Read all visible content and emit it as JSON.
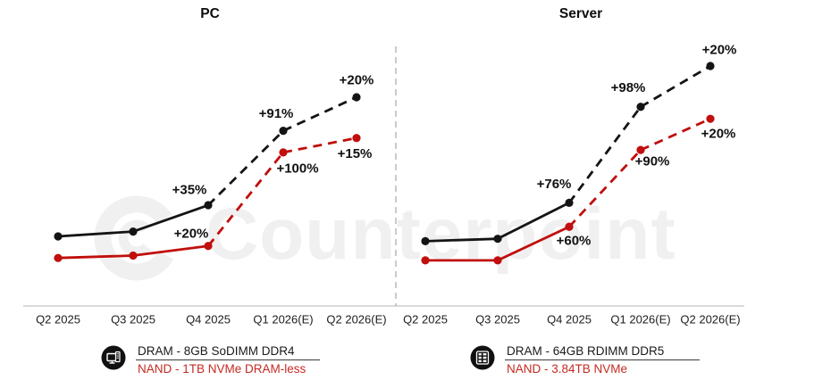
{
  "watermark": {
    "text": "Counterpoint",
    "tm": "™"
  },
  "colors": {
    "dram_line": "#141414",
    "nand_line": "#c00f0c",
    "annotation_text": "#111111",
    "axis_line": "#c4c4c4",
    "separator_line": "#a8a8a8",
    "tick_text": "#1c1c1c",
    "watermark": "#f0f0f0",
    "nand_text": "#c52a22",
    "legend_icon_bg": "#111111"
  },
  "chart_data": [
    {
      "type": "line",
      "title": "PC",
      "categories": [
        "Q2 2025",
        "Q3 2025",
        "Q4 2025",
        "Q1 2026(E)",
        "Q2 2026(E)"
      ],
      "xlabel": "",
      "ylabel": "",
      "axis_note": "no y-axis shown; levels are relative price-index heights (0-100) estimated from plot; solid = actuals through Q4 2025, dashed = estimates",
      "legend_position": "bottom",
      "grid": false,
      "series": [
        {
          "name": "DRAM",
          "legend_label": "DRAM - 8GB SoDIMM DDR4",
          "color_key": "dram_line",
          "levels": [
            29,
            31,
            42,
            73,
            87
          ],
          "qoq_labels": [
            "",
            "",
            "+35%",
            "+91%",
            "+20%"
          ],
          "solid_points": 3
        },
        {
          "name": "NAND",
          "legend_label": "NAND - 1TB NVMe DRAM-less",
          "color_key": "nand_line",
          "levels": [
            20,
            21,
            25,
            64,
            70
          ],
          "qoq_labels": [
            "",
            "",
            "+20%",
            "+100%",
            "+15%"
          ],
          "solid_points": 3
        }
      ]
    },
    {
      "type": "line",
      "title": "Server",
      "categories": [
        "Q2 2025",
        "Q3 2025",
        "Q4 2025",
        "Q1 2026(E)",
        "Q2 2026(E)"
      ],
      "xlabel": "",
      "ylabel": "",
      "axis_note": "no y-axis shown; levels are relative price-index heights (0-100) estimated from plot; solid = actuals through Q4 2025, dashed = estimates",
      "legend_position": "bottom",
      "grid": false,
      "series": [
        {
          "name": "DRAM",
          "legend_label": "DRAM - 64GB RDIMM DDR5",
          "color_key": "dram_line",
          "levels": [
            27,
            28,
            43,
            83,
            100
          ],
          "qoq_labels": [
            "",
            "",
            "+76%",
            "+98%",
            "+20%"
          ],
          "solid_points": 3
        },
        {
          "name": "NAND",
          "legend_label": "NAND - 3.84TB NVMe",
          "color_key": "nand_line",
          "levels": [
            19,
            19,
            33,
            65,
            78
          ],
          "qoq_labels": [
            "",
            "",
            "+60%",
            "+90%",
            "+20%"
          ],
          "solid_points": 3
        }
      ]
    }
  ],
  "legends": [
    {
      "icon": "pc-icon",
      "line1": "DRAM - 8GB SoDIMM DDR4",
      "line2": "NAND - 1TB NVMe DRAM-less"
    },
    {
      "icon": "server-icon",
      "line1": "DRAM - 64GB RDIMM DDR5",
      "line2": "NAND - 3.84TB NVMe"
    }
  ]
}
